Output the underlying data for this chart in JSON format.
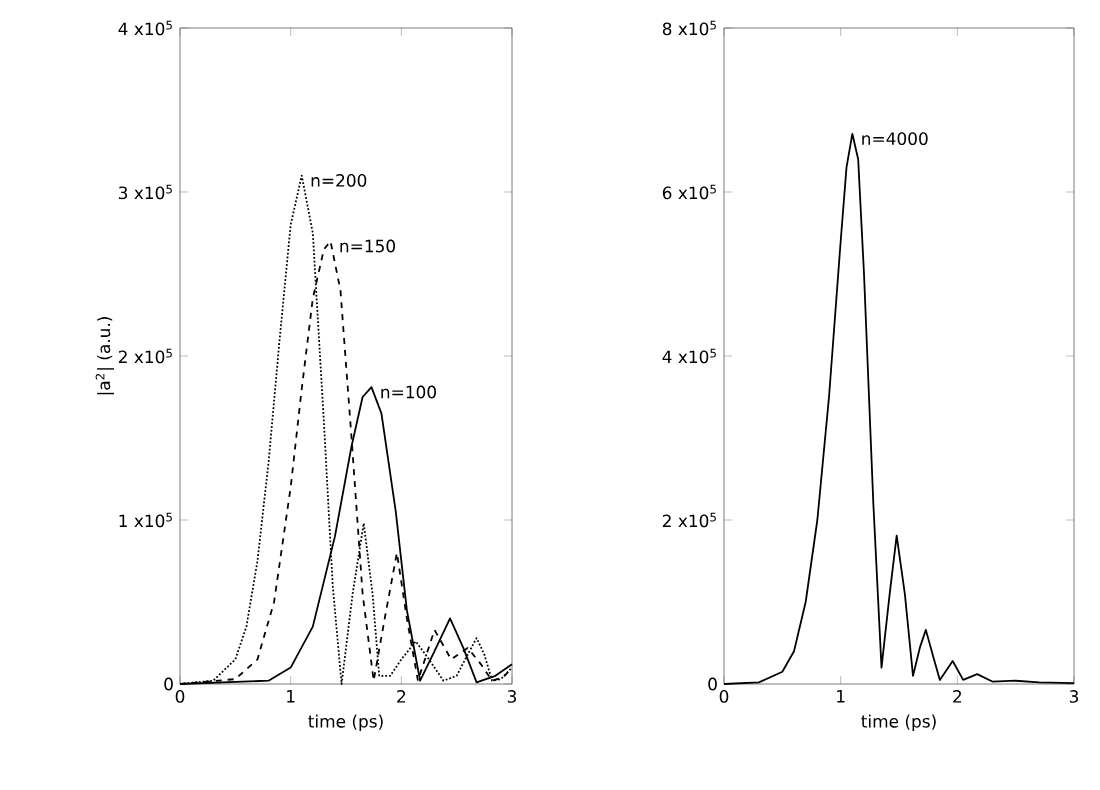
{
  "chart_data": [
    {
      "type": "line",
      "xlabel": "time (ps)",
      "ylabel": "|a$^{2}$| (a.u.)",
      "xlim": [
        0,
        3
      ],
      "ylim": [
        0,
        400000
      ],
      "xticks": [
        0,
        1,
        2,
        3
      ],
      "yticks": [
        0,
        {
          "value": 100000,
          "label": "1 x10$^{5}$"
        },
        {
          "value": 200000,
          "label": "2 x10$^{5}$"
        },
        {
          "value": 300000,
          "label": "3 x10$^{5}$"
        },
        {
          "value": 400000,
          "label": "4 x10$^{5}$"
        }
      ],
      "series": [
        {
          "name": "n=200",
          "color": "#000000",
          "line_style": "dotted",
          "x": [
            0,
            0.3,
            0.5,
            0.6,
            0.7,
            0.8,
            0.9,
            1.0,
            1.1,
            1.2,
            1.3,
            1.38,
            1.46,
            1.56,
            1.66,
            1.74,
            1.8,
            1.9,
            2.0,
            2.13,
            2.25,
            2.38,
            2.5,
            2.6,
            2.68,
            2.75,
            2.82,
            2.9,
            3.0
          ],
          "values": [
            0,
            2000,
            15000,
            35000,
            75000,
            135000,
            210000,
            280000,
            310000,
            275000,
            160000,
            60000,
            0,
            55000,
            98000,
            55000,
            5000,
            5000,
            15000,
            26000,
            15000,
            2000,
            5000,
            18000,
            28000,
            18000,
            2000,
            3000,
            10000
          ]
        },
        {
          "name": "n=150",
          "color": "#000000",
          "line_style": "dashed",
          "x": [
            0,
            0.5,
            0.7,
            0.85,
            1.0,
            1.1,
            1.2,
            1.3,
            1.36,
            1.45,
            1.55,
            1.65,
            1.75,
            1.85,
            1.96,
            2.05,
            2.15,
            2.3,
            2.45,
            2.6,
            2.72,
            2.82,
            2.92,
            3.0
          ],
          "values": [
            0,
            3000,
            15000,
            50000,
            120000,
            180000,
            235000,
            265000,
            270000,
            240000,
            150000,
            55000,
            2000,
            40000,
            80000,
            40000,
            2000,
            33000,
            15000,
            22000,
            12000,
            2000,
            4000,
            10000
          ]
        },
        {
          "name": "n=100",
          "color": "#000000",
          "line_style": "solid",
          "x": [
            0,
            0.8,
            1.0,
            1.2,
            1.4,
            1.55,
            1.65,
            1.73,
            1.82,
            1.95,
            2.05,
            2.17,
            2.3,
            2.44,
            2.56,
            2.68,
            2.85,
            3.0
          ],
          "values": [
            0,
            2000,
            10000,
            35000,
            90000,
            145000,
            175000,
            181000,
            165000,
            105000,
            45000,
            2000,
            20000,
            40000,
            22000,
            1000,
            5000,
            12000
          ]
        }
      ]
    },
    {
      "type": "line",
      "xlabel": "time (ps)",
      "xlim": [
        0,
        3
      ],
      "ylim": [
        0,
        800000
      ],
      "xticks": [
        0,
        1,
        2,
        3
      ],
      "yticks": [
        0,
        {
          "value": 200000,
          "label": "2 x10$^{5}$"
        },
        {
          "value": 400000,
          "label": "4 x10$^{5}$"
        },
        {
          "value": 600000,
          "label": "6 x10$^{5}$"
        },
        {
          "value": 800000,
          "label": "8 x10$^{5}$"
        }
      ],
      "series": [
        {
          "name": "n=4000",
          "color": "#000000",
          "line_style": "solid",
          "x": [
            0,
            0.3,
            0.5,
            0.6,
            0.7,
            0.8,
            0.9,
            1.0,
            1.05,
            1.1,
            1.15,
            1.2,
            1.28,
            1.35,
            1.42,
            1.48,
            1.55,
            1.62,
            1.68,
            1.73,
            1.79,
            1.85,
            1.96,
            2.05,
            2.17,
            2.3,
            2.5,
            2.7,
            3.0
          ],
          "values": [
            0,
            2000,
            15000,
            40000,
            100000,
            200000,
            350000,
            540000,
            630000,
            671000,
            640000,
            500000,
            220000,
            20000,
            110000,
            181000,
            110000,
            10000,
            45000,
            66000,
            35000,
            5000,
            28000,
            5000,
            12000,
            3000,
            4000,
            2000,
            1000
          ]
        }
      ]
    }
  ]
}
